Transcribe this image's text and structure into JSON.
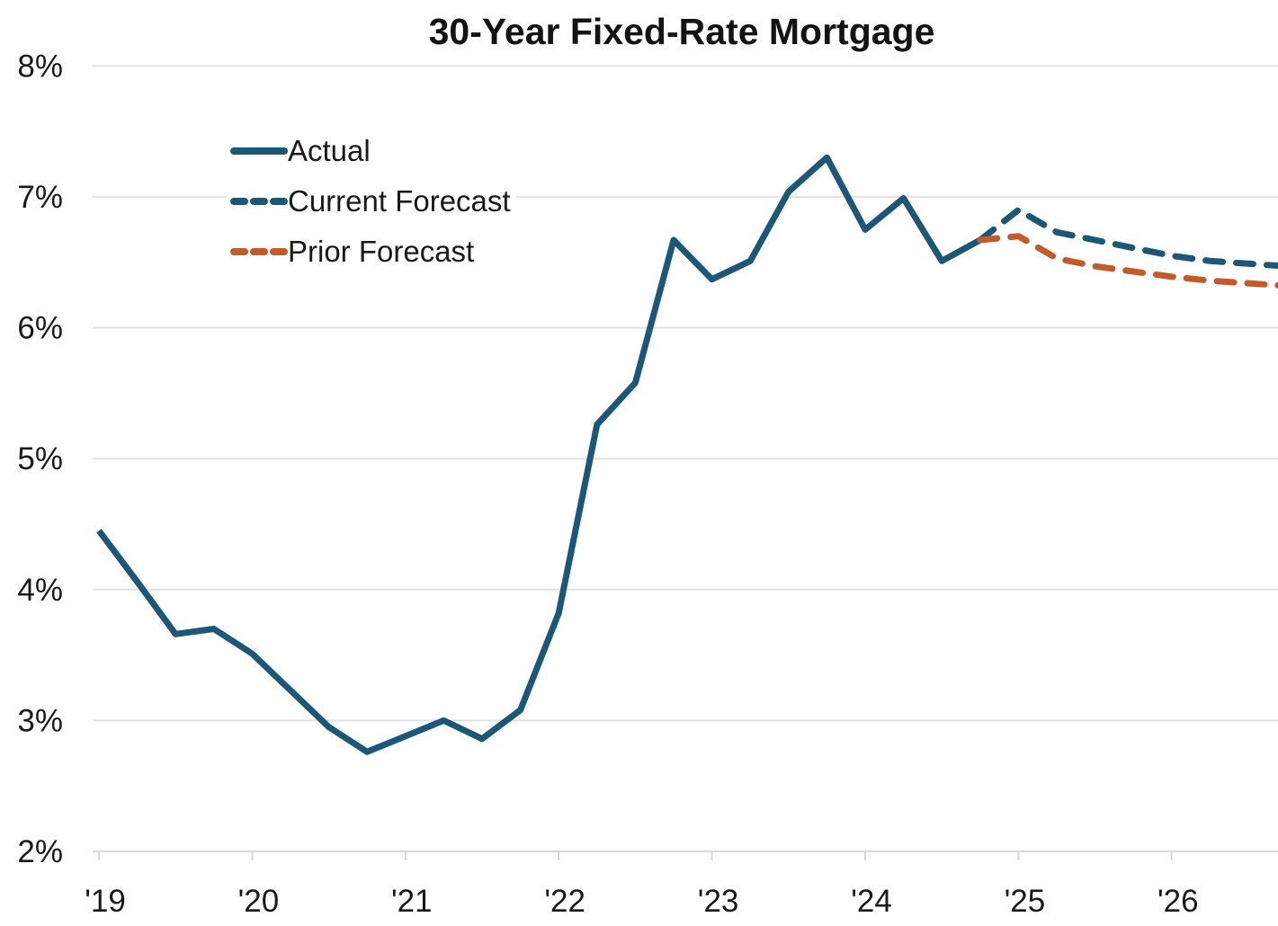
{
  "title": "30-Year Fixed-Rate Mortgage",
  "legend": {
    "position": "upper-left-inside",
    "items": [
      {
        "label": "Actual",
        "style": "solid",
        "color": "#1C5777"
      },
      {
        "label": "Current Forecast",
        "style": "dashed",
        "color": "#1C5777"
      },
      {
        "label": "Prior Forecast",
        "style": "dashed",
        "color": "#C25B2C"
      }
    ]
  },
  "colors": {
    "actual_line": "#1C5777",
    "current_forecast_line": "#1C5777",
    "prior_forecast_line": "#C25B2C",
    "gridline": "#E2E2E2",
    "axis_line": "#D9D9D9",
    "text": "#191919",
    "background": "#FFFFFF"
  },
  "chart_data": {
    "type": "line",
    "title": "30-Year Fixed-Rate Mortgage",
    "xlabel": "",
    "ylabel": "",
    "x_unit": "decimal year (quarterly points)",
    "xlim": [
      2019.0,
      2026.78
    ],
    "ylim": [
      2,
      8
    ],
    "grid": "horizontal",
    "legend_position": "upper-left-inside",
    "yticks": [
      {
        "value": 2,
        "label": "2%"
      },
      {
        "value": 3,
        "label": "3%"
      },
      {
        "value": 4,
        "label": "4%"
      },
      {
        "value": 5,
        "label": "5%"
      },
      {
        "value": 6,
        "label": "6%"
      },
      {
        "value": 7,
        "label": "7%"
      },
      {
        "value": 8,
        "label": "8%"
      }
    ],
    "xticks": [
      {
        "value": 2019,
        "label": "'19"
      },
      {
        "value": 2020,
        "label": "'20"
      },
      {
        "value": 2021,
        "label": "'21"
      },
      {
        "value": 2022,
        "label": "'22"
      },
      {
        "value": 2023,
        "label": "'23"
      },
      {
        "value": 2024,
        "label": "'24"
      },
      {
        "value": 2025,
        "label": "'25"
      },
      {
        "value": 2026,
        "label": "'26"
      }
    ],
    "series": [
      {
        "name": "Actual",
        "style": "solid",
        "color": "#1C5777",
        "points": [
          [
            2019.0,
            4.45
          ],
          [
            2019.25,
            4.06
          ],
          [
            2019.5,
            3.66
          ],
          [
            2019.75,
            3.7
          ],
          [
            2020.0,
            3.51
          ],
          [
            2020.25,
            3.23
          ],
          [
            2020.5,
            2.95
          ],
          [
            2020.75,
            2.76
          ],
          [
            2021.0,
            2.88
          ],
          [
            2021.25,
            3.0
          ],
          [
            2021.5,
            2.86
          ],
          [
            2021.75,
            3.08
          ],
          [
            2022.0,
            3.82
          ],
          [
            2022.25,
            5.26
          ],
          [
            2022.5,
            5.58
          ],
          [
            2022.75,
            6.67
          ],
          [
            2023.0,
            6.37
          ],
          [
            2023.25,
            6.51
          ],
          [
            2023.5,
            7.04
          ],
          [
            2023.75,
            7.3
          ],
          [
            2024.0,
            6.75
          ],
          [
            2024.25,
            6.99
          ],
          [
            2024.5,
            6.51
          ],
          [
            2024.75,
            6.67
          ]
        ]
      },
      {
        "name": "Current Forecast",
        "style": "dashed",
        "color": "#1C5777",
        "points": [
          [
            2024.75,
            6.67
          ],
          [
            2025.0,
            6.9
          ],
          [
            2025.25,
            6.73
          ],
          [
            2025.5,
            6.67
          ],
          [
            2025.75,
            6.61
          ],
          [
            2026.0,
            6.55
          ],
          [
            2026.25,
            6.51
          ],
          [
            2026.5,
            6.49
          ],
          [
            2026.75,
            6.47
          ]
        ]
      },
      {
        "name": "Prior Forecast",
        "style": "dashed",
        "color": "#C25B2C",
        "points": [
          [
            2024.75,
            6.67
          ],
          [
            2025.0,
            6.7
          ],
          [
            2025.25,
            6.53
          ],
          [
            2025.5,
            6.47
          ],
          [
            2025.75,
            6.43
          ],
          [
            2026.0,
            6.39
          ],
          [
            2026.25,
            6.36
          ],
          [
            2026.5,
            6.34
          ],
          [
            2026.75,
            6.32
          ]
        ]
      }
    ]
  }
}
